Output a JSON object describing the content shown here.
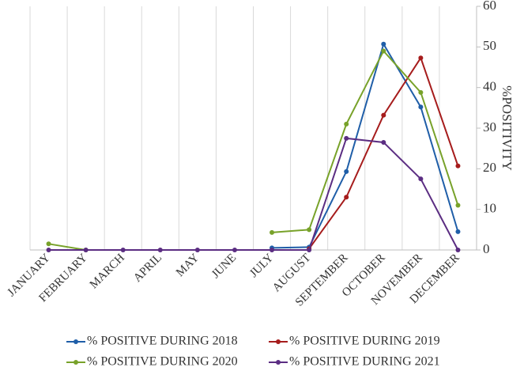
{
  "chart_data": {
    "type": "line",
    "y_axis_label": "%POSITIVITY",
    "categories": [
      "JANUARY",
      "FEBRUARY",
      "MARCH",
      "APRIL",
      "MAY",
      "JUNE",
      "JULY",
      "AUGUST",
      "SEPTEMBER",
      "OCTOBER",
      "NOVEMBER",
      "DECEMBER"
    ],
    "series": [
      {
        "name": "% POSITIVE DURING 2018",
        "color": "#1f5ea8",
        "values": [
          null,
          null,
          null,
          null,
          null,
          null,
          0.5,
          0.7,
          19.3,
          50.7,
          35.2,
          4.5
        ]
      },
      {
        "name": "% POSITIVE DURING 2019",
        "color": "#a61c1c",
        "values": [
          null,
          null,
          null,
          null,
          null,
          null,
          null,
          0.3,
          13,
          33.2,
          47.3,
          20.7
        ]
      },
      {
        "name": "% POSITIVE DURING 2020",
        "color": "#78a22a",
        "values": [
          1.5,
          0,
          null,
          null,
          null,
          null,
          4.3,
          5,
          31,
          49,
          38.8,
          11
        ]
      },
      {
        "name": "% POSITIVE DURING 2021",
        "color": "#5b2d82",
        "values": [
          0,
          0,
          0,
          0,
          0,
          0,
          0,
          0,
          27.5,
          26.5,
          17.5,
          0
        ]
      }
    ],
    "ylim": [
      0,
      60
    ],
    "yticks": [
      0,
      10,
      20,
      30,
      40,
      50,
      60
    ],
    "y_axis_side": "right",
    "grid": "vertical",
    "legend": "bottom"
  }
}
